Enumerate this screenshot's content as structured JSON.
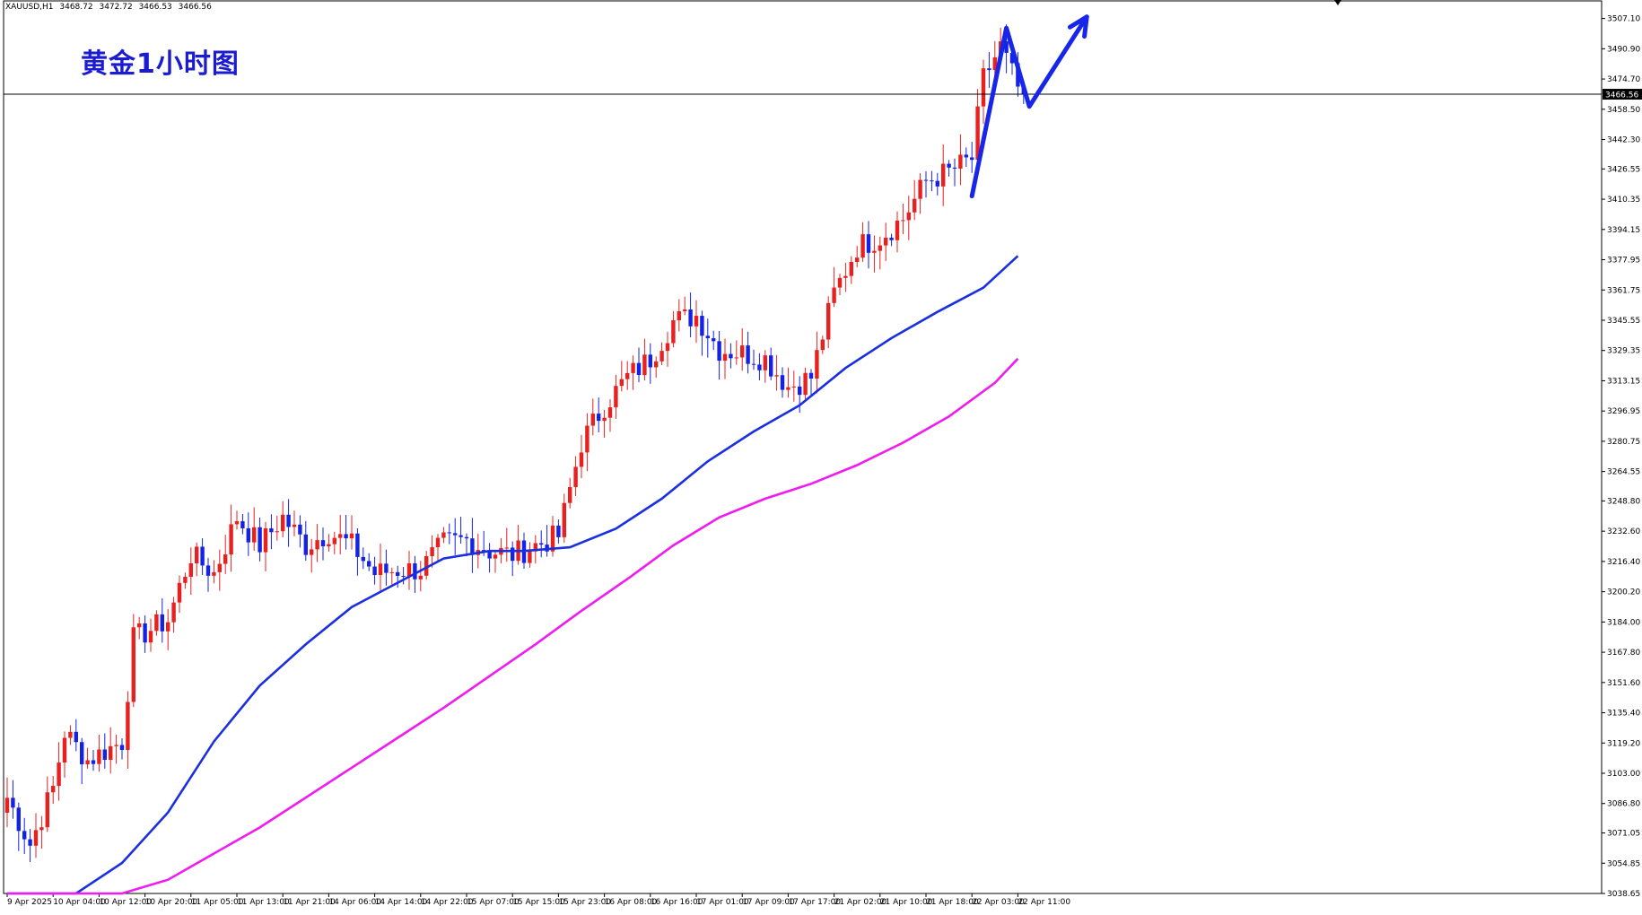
{
  "header": {
    "symbol": "XAUUSD,H1",
    "ohlc": [
      "3468.72",
      "3472.72",
      "3466.53",
      "3466.56"
    ]
  },
  "chart_data": {
    "type": "candlestick",
    "title": "黄金1小时图",
    "current_price": 3466.56,
    "current_price_label": "3466.56",
    "ylim": [
      3038.65,
      3517.0
    ],
    "y_ticks": [
      "3507.10",
      "3490.90",
      "3474.70",
      "3458.50",
      "3442.30",
      "3426.55",
      "3410.35",
      "3394.15",
      "3377.95",
      "3361.75",
      "3345.55",
      "3329.35",
      "3313.15",
      "3296.95",
      "3280.75",
      "3264.55",
      "3248.80",
      "3232.60",
      "3216.40",
      "3200.20",
      "3184.00",
      "3167.80",
      "3151.60",
      "3135.40",
      "3119.20",
      "3103.00",
      "3086.80",
      "3071.05",
      "3054.85",
      "3038.65"
    ],
    "x_labels": [
      "9 Apr 2025",
      "10 Apr 04:00",
      "10 Apr 12:00",
      "10 Apr 20:00",
      "11 Apr 05:00",
      "11 Apr 13:00",
      "11 Apr 21:00",
      "14 Apr 06:00",
      "14 Apr 14:00",
      "14 Apr 22:00",
      "15 Apr 07:00",
      "15 Apr 15:00",
      "15 Apr 23:00",
      "16 Apr 08:00",
      "16 Apr 16:00",
      "17 Apr 01:00",
      "17 Apr 09:00",
      "17 Apr 17:00",
      "21 Apr 02:00",
      "21 Apr 10:00",
      "21 Apr 18:00",
      "22 Apr 03:00",
      "22 Apr 11:00"
    ],
    "x_label_bar_index": [
      0,
      8,
      16,
      24,
      32,
      40,
      48,
      56,
      64,
      72,
      80,
      88,
      96,
      104,
      112,
      120,
      128,
      136,
      144,
      152,
      160,
      168,
      176
    ],
    "bar_count": 182,
    "close_anchors": [
      [
        0,
        3090
      ],
      [
        4,
        3065
      ],
      [
        8,
        3095
      ],
      [
        10,
        3125
      ],
      [
        14,
        3110
      ],
      [
        20,
        3120
      ],
      [
        22,
        3175
      ],
      [
        28,
        3185
      ],
      [
        32,
        3220
      ],
      [
        36,
        3210
      ],
      [
        40,
        3240
      ],
      [
        44,
        3225
      ],
      [
        48,
        3240
      ],
      [
        52,
        3225
      ],
      [
        56,
        3232
      ],
      [
        60,
        3225
      ],
      [
        64,
        3210
      ],
      [
        68,
        3212
      ],
      [
        72,
        3212
      ],
      [
        76,
        3226
      ],
      [
        80,
        3228
      ],
      [
        84,
        3222
      ],
      [
        88,
        3220
      ],
      [
        92,
        3225
      ],
      [
        96,
        3230
      ],
      [
        100,
        3280
      ],
      [
        104,
        3300
      ],
      [
        108,
        3315
      ],
      [
        112,
        3325
      ],
      [
        116,
        3345
      ],
      [
        120,
        3348
      ],
      [
        124,
        3330
      ],
      [
        128,
        3328
      ],
      [
        132,
        3325
      ],
      [
        136,
        3310
      ],
      [
        140,
        3315
      ],
      [
        144,
        3360
      ],
      [
        148,
        3385
      ],
      [
        152,
        3390
      ],
      [
        156,
        3400
      ],
      [
        160,
        3420
      ],
      [
        164,
        3425
      ],
      [
        168,
        3432
      ],
      [
        170,
        3475
      ],
      [
        173,
        3492
      ],
      [
        176,
        3470
      ],
      [
        177,
        3466.56
      ]
    ],
    "series": [
      {
        "name": "",
        "color": "#1a2fe0",
        "points": [
          [
            0,
            3038.65
          ],
          [
            12,
            3038.65
          ],
          [
            20,
            3055
          ],
          [
            28,
            3082
          ],
          [
            36,
            3120
          ],
          [
            44,
            3150
          ],
          [
            52,
            3172
          ],
          [
            60,
            3192
          ],
          [
            68,
            3205
          ],
          [
            76,
            3218
          ],
          [
            84,
            3222
          ],
          [
            90,
            3222
          ],
          [
            98,
            3224
          ],
          [
            106,
            3234
          ],
          [
            114,
            3250
          ],
          [
            122,
            3270
          ],
          [
            130,
            3286
          ],
          [
            138,
            3300
          ],
          [
            146,
            3320
          ],
          [
            154,
            3336
          ],
          [
            162,
            3350
          ],
          [
            170,
            3363
          ],
          [
            176,
            3380
          ]
        ]
      },
      {
        "name": "",
        "color": "#f01bf0",
        "points": [
          [
            0,
            3038.65
          ],
          [
            20,
            3038.65
          ],
          [
            28,
            3046
          ],
          [
            36,
            3060
          ],
          [
            44,
            3074
          ],
          [
            52,
            3090
          ],
          [
            60,
            3106
          ],
          [
            68,
            3122
          ],
          [
            76,
            3138
          ],
          [
            84,
            3155
          ],
          [
            92,
            3172
          ],
          [
            100,
            3190
          ],
          [
            108,
            3207
          ],
          [
            116,
            3225
          ],
          [
            124,
            3240
          ],
          [
            132,
            3250
          ],
          [
            140,
            3258
          ],
          [
            148,
            3268
          ],
          [
            156,
            3280
          ],
          [
            164,
            3294
          ],
          [
            172,
            3312
          ],
          [
            176,
            3325
          ]
        ]
      }
    ],
    "annotation_arrow": {
      "color": "#1726e8",
      "points": [
        [
          168,
          3412
        ],
        [
          174,
          3502
        ],
        [
          178,
          3460
        ],
        [
          188,
          3508
        ]
      ]
    }
  }
}
